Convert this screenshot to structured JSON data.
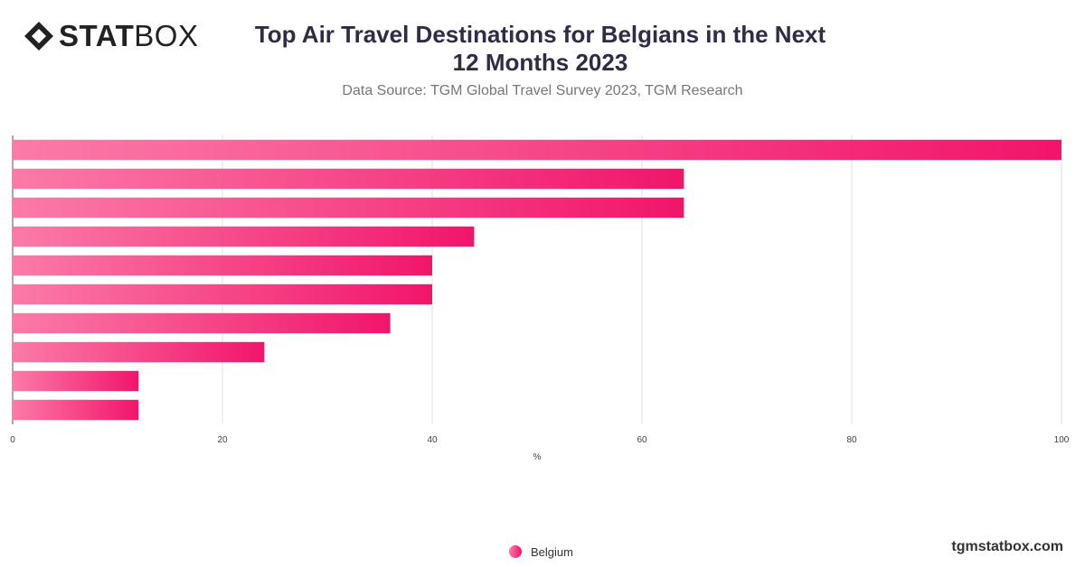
{
  "brand": {
    "logo_bold": "STAT",
    "logo_light": "BOX",
    "website": "tgmstatbox.com"
  },
  "header": {
    "title": "Top Air Travel Destinations for Belgians in the Next 12 Months 2023",
    "subtitle": "Data Source: TGM Global Travel Survey 2023, TGM Research"
  },
  "colors": {
    "bar_gradient_start": "#fb7aa8",
    "bar_gradient_end": "#f2156a",
    "gridline": "#e0e0e0",
    "title": "#2f2d46"
  },
  "chart_data": {
    "type": "bar",
    "orientation": "horizontal",
    "title": "Top Air Travel Destinations for Belgians in the Next 12 Months 2023",
    "subtitle": "Data Source: TGM Global Travel Survey 2023, TGM Research",
    "xlabel": "%",
    "ylabel": "",
    "xlim": [
      0,
      100
    ],
    "x_ticks": [
      0,
      20,
      40,
      60,
      80,
      100
    ],
    "grid": true,
    "legend": "bottom-center",
    "series": [
      {
        "name": "Belgium",
        "values": [
          100,
          64,
          64,
          44,
          40,
          40,
          36,
          24,
          12,
          12
        ]
      }
    ]
  }
}
